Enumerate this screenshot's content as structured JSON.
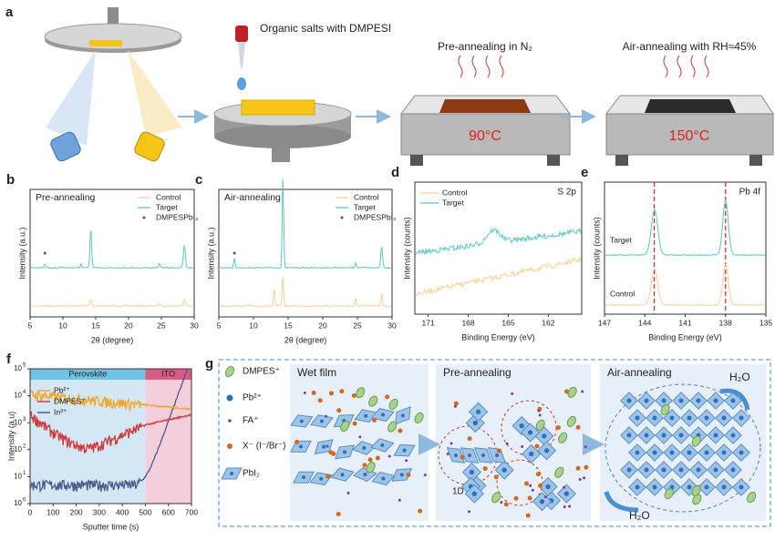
{
  "panel_a": {
    "label": "a",
    "dropper_text": "Organic salts with DMPESI",
    "step2_title": "Pre-annealing in N₂",
    "step2_temp": "90°C",
    "step3_title": "Air-annealing with RH≈45%",
    "step3_temp": "150°C"
  },
  "chart_data": [
    {
      "type": "line",
      "panel_label": "b",
      "title": "Pre-annealing",
      "series": [
        {
          "name": "Control",
          "color": "#f5cf9a"
        },
        {
          "name": "Target",
          "color": "#5cc8bf"
        }
      ],
      "marker_legend": "DMPESPbI₃",
      "xlabel": "2θ (degree)",
      "ylabel": "Intensity (a.u.)",
      "xlim": [
        5,
        30
      ],
      "xticks": [
        5,
        10,
        15,
        20,
        25,
        30
      ]
    },
    {
      "type": "line",
      "panel_label": "c",
      "title": "Air-annealing",
      "series": [
        {
          "name": "Control",
          "color": "#f5cf9a"
        },
        {
          "name": "Target",
          "color": "#5cc8bf"
        }
      ],
      "marker_legend": "DMPESPbI₃",
      "xlabel": "2θ (degree)",
      "ylabel": "Intensity (a.u.)",
      "xlim": [
        5,
        30
      ],
      "xticks": [
        5,
        10,
        15,
        20,
        25,
        30
      ]
    },
    {
      "type": "line",
      "panel_label": "d",
      "title": "S 2p",
      "series": [
        {
          "name": "Control",
          "color": "#f5cf9a"
        },
        {
          "name": "Target",
          "color": "#5cc8bf"
        }
      ],
      "xlabel": "Binding Energy (eV)",
      "ylabel": "Intensity (counts)",
      "xlim": [
        172,
        159.5
      ],
      "xticks": [
        171,
        168,
        165,
        162
      ]
    },
    {
      "type": "line",
      "panel_label": "e",
      "title": "Pb 4f",
      "series": [
        {
          "name": "Target",
          "color": "#5cc8bf"
        },
        {
          "name": "Control",
          "color": "#f5cf9a"
        }
      ],
      "reference_lines": [
        143.3,
        138
      ],
      "xlabel": "Binding Energy (eV)",
      "ylabel": "Intensity (counts)",
      "xlim": [
        147,
        135
      ],
      "xticks": [
        147,
        144,
        141,
        138,
        135
      ]
    },
    {
      "type": "log-line",
      "panel_label": "f",
      "regions": [
        {
          "label": "Perovskite",
          "start": 0,
          "end": 500,
          "color": "#d3e7f4",
          "head": "#6ec3e6"
        },
        {
          "label": "ITO",
          "start": 500,
          "end": 700,
          "color": "#f4cedb",
          "head": "#d95b86"
        }
      ],
      "series": [
        {
          "name": "Pb²⁺",
          "color": "#f0a830"
        },
        {
          "name": "DMPES⁺",
          "color": "#d03c3c"
        },
        {
          "name": "In³⁺",
          "color": "#4a5a8a"
        }
      ],
      "xlabel": "Sputter time (s)",
      "ylabel": "Intensity (a.u)",
      "xlim": [
        0,
        700
      ],
      "xticks": [
        0,
        100,
        200,
        300,
        400,
        500,
        600,
        700
      ],
      "ylim": [
        1,
        100000
      ],
      "yticks": [
        {
          "value": 1,
          "label": "10",
          "exp": "0"
        },
        {
          "value": 10,
          "label": "10",
          "exp": "1"
        },
        {
          "value": 100,
          "label": "10",
          "exp": "2"
        },
        {
          "value": 1000,
          "label": "10",
          "exp": "3"
        },
        {
          "value": 10000,
          "label": "10",
          "exp": "4"
        },
        {
          "value": 100000,
          "label": "10",
          "exp": "5"
        }
      ],
      "log_y": true
    }
  ],
  "panel_g": {
    "label": "g",
    "legend": [
      "DMPES⁺",
      "Pb²⁺",
      "FA⁺",
      "X⁻ (I⁻/Br⁻)",
      "PbI₂"
    ],
    "stages": [
      "Wet film",
      "Pre-annealing",
      "Air-annealing"
    ],
    "chain_label": "1D",
    "water": [
      "H₂O",
      "H₂O"
    ]
  }
}
